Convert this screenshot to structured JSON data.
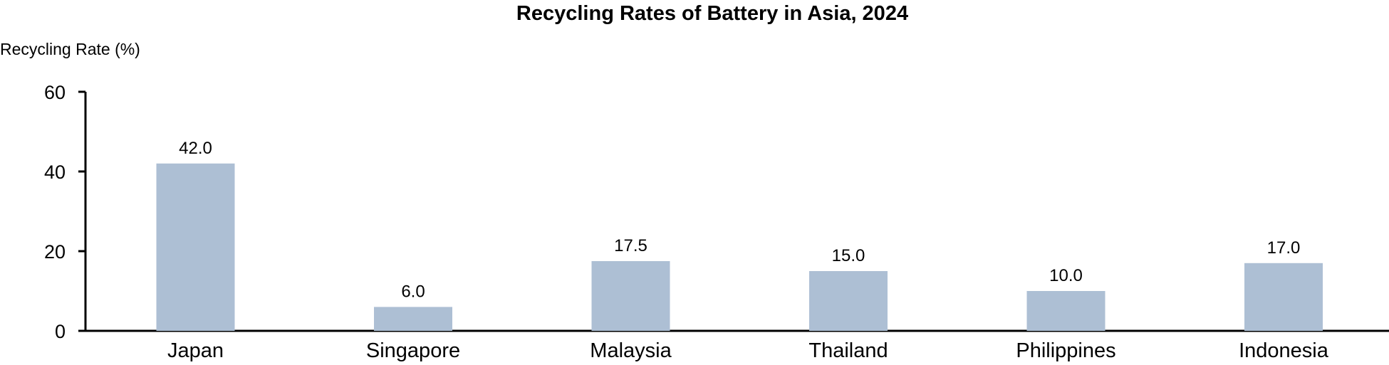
{
  "chart_data": {
    "type": "bar",
    "title": "Recycling Rates of Battery in Asia, 2024",
    "xlabel": "",
    "ylabel": "Recycling Rate (%)",
    "categories": [
      "Japan",
      "Singapore",
      "Malaysia",
      "Thailand",
      "Philippines",
      "Indonesia"
    ],
    "values": [
      42.0,
      6.0,
      17.5,
      15.0,
      10.0,
      17.0
    ],
    "value_labels": [
      "42.0",
      "6.0",
      "17.5",
      "15.0",
      "10.0",
      "17.0"
    ],
    "ylim": [
      0,
      60
    ],
    "yticks": [
      0,
      20,
      40,
      60
    ],
    "ytick_labels": [
      "0",
      "20",
      "40",
      "60"
    ],
    "grid": false,
    "legend": "none",
    "colors": {
      "bar": "#adbfd4",
      "axis": "#000000",
      "text": "#000000"
    }
  }
}
